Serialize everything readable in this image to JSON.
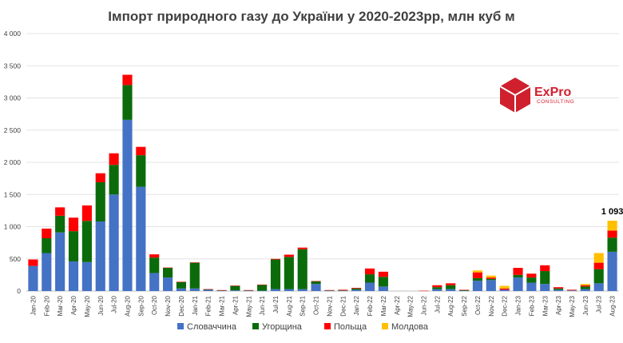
{
  "chart_data": {
    "type": "bar",
    "stacked": true,
    "title": "Імпорт природного газу до України у 2020-2023рр, млн куб м",
    "categories": [
      "Jan-20",
      "Feb-20",
      "Mar-20",
      "Apr-20",
      "May-20",
      "Jun-20",
      "Jul-20",
      "Aug-20",
      "Sep-20",
      "Oct-20",
      "Nov-20",
      "Dec-20",
      "Jan-21",
      "Feb-21",
      "Mar-21",
      "Apr-21",
      "May-21",
      "Jun-21",
      "Jul-21",
      "Aug-21",
      "Sep-21",
      "Oct-21",
      "Nov-21",
      "Dec-21",
      "Jan-22",
      "Feb-22",
      "Mar-22",
      "Apr-22",
      "May-22",
      "Jun-22",
      "Jul-22",
      "Aug-22",
      "Sep-22",
      "Oct-22",
      "Nov-22",
      "Dec-22",
      "Jan-23",
      "Feb-23",
      "Mar-23",
      "Apr-23",
      "May-23",
      "Jun-23",
      "Jul-23",
      "Aug-23"
    ],
    "series": [
      {
        "name": "Словаччина",
        "color": "#4472c4",
        "values": [
          390,
          590,
          910,
          460,
          450,
          1080,
          1500,
          2660,
          1620,
          280,
          210,
          40,
          40,
          20,
          5,
          10,
          5,
          5,
          30,
          30,
          30,
          110,
          5,
          5,
          20,
          130,
          70,
          0,
          0,
          0,
          30,
          30,
          5,
          160,
          170,
          20,
          210,
          130,
          110,
          20,
          10,
          30,
          120,
          610
        ]
      },
      {
        "name": "Угорщина",
        "color": "#0b6b0b",
        "values": [
          0,
          230,
          260,
          470,
          640,
          610,
          460,
          540,
          490,
          240,
          150,
          100,
          400,
          5,
          5,
          70,
          5,
          90,
          460,
          500,
          620,
          40,
          5,
          5,
          20,
          130,
          150,
          0,
          0,
          0,
          30,
          60,
          10,
          40,
          20,
          0,
          40,
          80,
          200,
          20,
          0,
          40,
          220,
          220
        ]
      },
      {
        "name": "Польща",
        "color": "#ff0000",
        "values": [
          100,
          150,
          130,
          210,
          240,
          140,
          180,
          160,
          130,
          50,
          5,
          5,
          5,
          5,
          5,
          5,
          5,
          5,
          10,
          35,
          25,
          5,
          5,
          10,
          10,
          90,
          80,
          0,
          0,
          5,
          30,
          30,
          5,
          90,
          20,
          20,
          110,
          60,
          90,
          20,
          10,
          20,
          100,
          110
        ]
      },
      {
        "name": "Молдова",
        "color": "#ffc000",
        "values": [
          0,
          0,
          0,
          0,
          0,
          0,
          0,
          0,
          0,
          0,
          0,
          0,
          0,
          0,
          0,
          0,
          0,
          0,
          0,
          0,
          0,
          0,
          0,
          0,
          0,
          0,
          0,
          0,
          0,
          0,
          0,
          0,
          0,
          30,
          30,
          40,
          0,
          0,
          0,
          0,
          0,
          20,
          150,
          153
        ]
      }
    ],
    "ylim": [
      0,
      4000
    ],
    "yticks": [
      "0",
      "500",
      "1 000",
      "1 500",
      "2 000",
      "2 500",
      "3 000",
      "3 500",
      "4 000"
    ],
    "grid": true,
    "legend_position": "bottom",
    "annotations": [
      {
        "category": "Aug-23",
        "text": "1 093"
      }
    ]
  },
  "logo": {
    "text": "ExPro",
    "subtitle": "CONSULTING",
    "color": "#d0202e"
  }
}
